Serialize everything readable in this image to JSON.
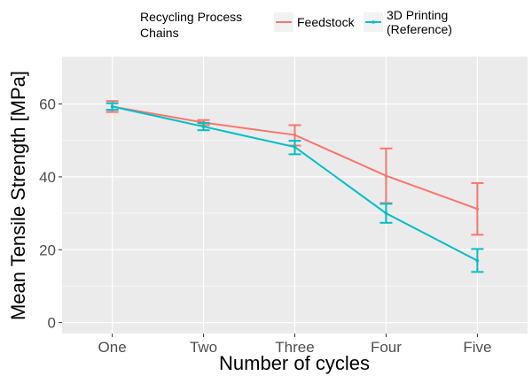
{
  "chart_data": {
    "type": "line",
    "xlabel": "Number of cycles",
    "ylabel": "Mean Tensile Strength [MPa]",
    "categories": [
      "One",
      "Two",
      "Three",
      "Four",
      "Five"
    ],
    "ylim": [
      -3,
      73
    ],
    "yticks": [
      0,
      20,
      40,
      60
    ],
    "grid": true,
    "legend": {
      "title_lines": [
        "Recycling Process",
        "Chains"
      ],
      "placement": "top"
    },
    "series": [
      {
        "name": "Feedstock",
        "label_lines": [
          "Feedstock"
        ],
        "color": "#F8766D",
        "values": [
          59.3,
          54.9,
          51.5,
          40.3,
          31.2
        ],
        "err_low": [
          57.8,
          54.2,
          48.6,
          32.8,
          24.1
        ],
        "err_high": [
          60.8,
          55.6,
          54.2,
          47.8,
          38.3
        ]
      },
      {
        "name": "3D Printing (Reference)",
        "label_lines": [
          "3D Printing",
          "(Reference)"
        ],
        "color": "#00BFC4",
        "values": [
          59.3,
          53.8,
          48.2,
          30.0,
          17.0
        ],
        "err_low": [
          58.4,
          52.8,
          46.2,
          27.4,
          13.9
        ],
        "err_high": [
          60.2,
          54.8,
          49.9,
          32.6,
          20.2
        ]
      }
    ]
  }
}
